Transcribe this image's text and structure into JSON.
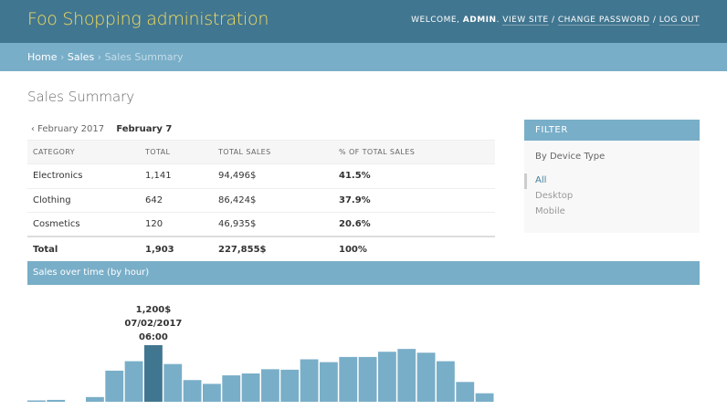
{
  "header": {
    "branding": "Foo Shopping administration",
    "welcome": "Welcome,",
    "username": "admin",
    "view_site": "View site",
    "change_password": "Change password",
    "log_out": "Log out"
  },
  "breadcrumbs": {
    "home": "Home",
    "sales": "Sales",
    "current": "Sales Summary"
  },
  "page_title": "Sales Summary",
  "date_nav": {
    "prev": "‹ February 2017",
    "current": "February 7"
  },
  "table": {
    "headers": [
      "CATEGORY",
      "TOTAL",
      "TOTAL SALES",
      "% OF TOTAL SALES"
    ],
    "rows": [
      {
        "category": "Electronics",
        "total": "1,141",
        "total_sales": "94,496$",
        "pct": "41.5%"
      },
      {
        "category": "Clothing",
        "total": "642",
        "total_sales": "86,424$",
        "pct": "37.9%"
      },
      {
        "category": "Cosmetics",
        "total": "120",
        "total_sales": "46,935$",
        "pct": "20.6%"
      }
    ],
    "total_row": {
      "category": "Total",
      "total": "1,903",
      "total_sales": "227,855$",
      "pct": "100%"
    }
  },
  "filter": {
    "heading": "FILTER",
    "title": "By Device Type",
    "options": [
      "All",
      "Desktop",
      "Mobile"
    ],
    "selected": "All"
  },
  "section_bar": "Sales over time (by hour)",
  "colors": {
    "header_bg": "#417690",
    "branding": "#f5dd5d",
    "accent": "#79aec8",
    "bar": "#79aec8",
    "bar_highlight": "#417690"
  },
  "chart_data": {
    "type": "bar",
    "values": [
      20,
      40,
      0,
      100,
      660,
      860,
      1200,
      800,
      460,
      380,
      560,
      600,
      690,
      680,
      900,
      840,
      950,
      950,
      1060,
      1120,
      1040,
      860,
      420,
      180
    ],
    "highlight_index": 6,
    "ylim": [
      0,
      1200
    ],
    "tooltip": {
      "value": "1,200$",
      "date": "07/02/2017",
      "time": "06:00"
    }
  }
}
